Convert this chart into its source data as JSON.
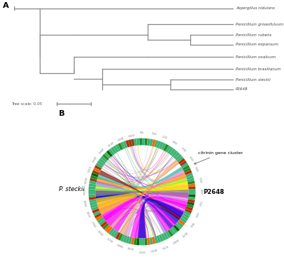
{
  "panel_a_label": "A",
  "panel_b_label": "B",
  "tree_scale_text": "Tree scale: 0.05",
  "taxa": [
    "Aspergillus nidulans",
    "Penicillium griseofulvum",
    "Penicillium rubens",
    "Penicillium expansum",
    "Penicillium oxalicum",
    "Penicillium brasilianum",
    "Penicillium steckii",
    "P2648"
  ],
  "label_P2648": "P2648",
  "label_steckii": "P. steckii",
  "label_citrinin": "citrinin gene cluster",
  "bg_color": "#ffffff",
  "text_color": "#555555",
  "tree_line_color": "#888888",
  "italic_color": "#444444",
  "ring_green": "#3CB371",
  "ring_dark_green": "#006400",
  "ring_orange": "#FF6600",
  "ring_red": "#CC0000",
  "chord_colors": [
    "#FF00FF",
    "#FF00FF",
    "#FF00FF",
    "#FF00FF",
    "#FF00FF",
    "#FFD700",
    "#FFD700",
    "#FFD700",
    "#FFD700",
    "#0000CD",
    "#0000CD",
    "#0000CD",
    "#0000CD",
    "#808080",
    "#808080",
    "#808080",
    "#808080",
    "#808080",
    "#FF8C00",
    "#FF8C00",
    "#FF8C00",
    "#9370DB",
    "#9370DB",
    "#9370DB",
    "#00CED1",
    "#00CED1",
    "#32CD32",
    "#32CD32",
    "#FF69B4",
    "#FF69B4",
    "#A9A9A9",
    "#A9A9A9",
    "#DC143C",
    "#DC143C",
    "#7FFF00",
    "#7FFF00",
    "#FF4500",
    "#FF4500",
    "#DDA0DD",
    "#DDA0DD",
    "#20B2AA",
    "#20B2AA",
    "#F0E68C",
    "#F0E68C",
    "#BC8F8F",
    "#BC8F8F",
    "#6495ED",
    "#6495ED",
    "#8B0000",
    "#556B2F",
    "#FF1493",
    "#00FA9A",
    "#4682B4",
    "#D2691E",
    "#ADFF2F",
    "#FF6347"
  ]
}
